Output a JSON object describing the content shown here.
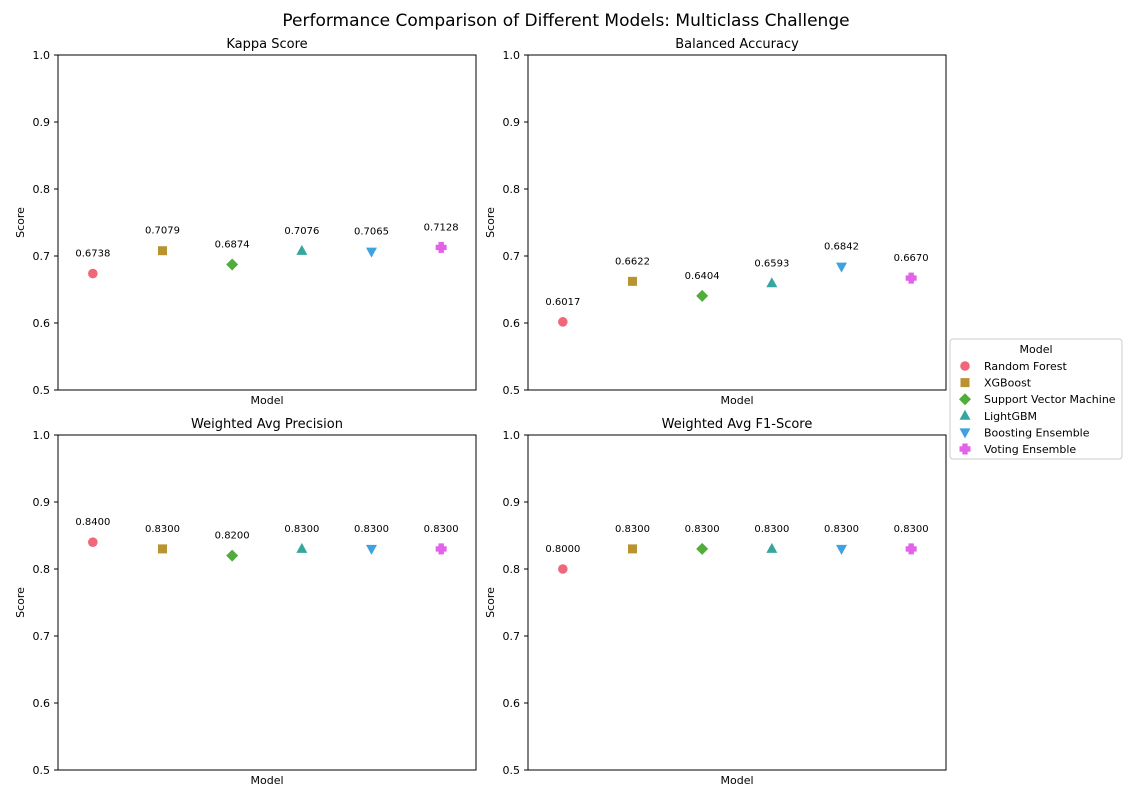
{
  "figure": {
    "title": "Performance Comparison of Different Models: Multiclass Challenge",
    "legend_title": "Model",
    "legend_placement": "right",
    "models": [
      {
        "name": "Random Forest",
        "color": "#f0677a",
        "marker": "circle"
      },
      {
        "name": "XGBoost",
        "color": "#b8932f",
        "marker": "square"
      },
      {
        "name": "Support Vector Machine",
        "color": "#50ad3c",
        "marker": "diamond"
      },
      {
        "name": "LightGBM",
        "color": "#36a7a0",
        "marker": "triangle-up"
      },
      {
        "name": "Boosting Ensemble",
        "color": "#3fa1e0",
        "marker": "triangle-down"
      },
      {
        "name": "Voting Ensemble",
        "color": "#e262ea",
        "marker": "plus"
      }
    ]
  },
  "chart_data": [
    {
      "type": "scatter",
      "title": "Kappa Score",
      "xlabel": "Model",
      "ylabel": "Score",
      "ylim": [
        0.5,
        1.0
      ],
      "yticks": [
        "0.5",
        "0.6",
        "0.7",
        "0.8",
        "0.9",
        "1.0"
      ],
      "grid": false,
      "categories": [
        "Random Forest",
        "XGBoost",
        "Support Vector Machine",
        "LightGBM",
        "Boosting Ensemble",
        "Voting Ensemble"
      ],
      "values": [
        0.6738,
        0.7079,
        0.6874,
        0.7076,
        0.7065,
        0.7128
      ],
      "labels": [
        "0.6738",
        "0.7079",
        "0.6874",
        "0.7076",
        "0.7065",
        "0.7128"
      ]
    },
    {
      "type": "scatter",
      "title": "Balanced Accuracy",
      "xlabel": "Model",
      "ylabel": "Score",
      "ylim": [
        0.5,
        1.0
      ],
      "yticks": [
        "0.5",
        "0.6",
        "0.7",
        "0.8",
        "0.9",
        "1.0"
      ],
      "grid": false,
      "categories": [
        "Random Forest",
        "XGBoost",
        "Support Vector Machine",
        "LightGBM",
        "Boosting Ensemble",
        "Voting Ensemble"
      ],
      "values": [
        0.6017,
        0.6622,
        0.6404,
        0.6593,
        0.6842,
        0.667
      ],
      "labels": [
        "0.6017",
        "0.6622",
        "0.6404",
        "0.6593",
        "0.6842",
        "0.6670"
      ]
    },
    {
      "type": "scatter",
      "title": "Weighted Avg Precision",
      "xlabel": "Model",
      "ylabel": "Score",
      "ylim": [
        0.5,
        1.0
      ],
      "yticks": [
        "0.5",
        "0.6",
        "0.7",
        "0.8",
        "0.9",
        "1.0"
      ],
      "grid": false,
      "categories": [
        "Random Forest",
        "XGBoost",
        "Support Vector Machine",
        "LightGBM",
        "Boosting Ensemble",
        "Voting Ensemble"
      ],
      "values": [
        0.84,
        0.83,
        0.82,
        0.83,
        0.83,
        0.83
      ],
      "labels": [
        "0.8400",
        "0.8300",
        "0.8200",
        "0.8300",
        "0.8300",
        "0.8300"
      ]
    },
    {
      "type": "scatter",
      "title": "Weighted Avg F1-Score",
      "xlabel": "Model",
      "ylabel": "Score",
      "ylim": [
        0.5,
        1.0
      ],
      "yticks": [
        "0.5",
        "0.6",
        "0.7",
        "0.8",
        "0.9",
        "1.0"
      ],
      "grid": false,
      "categories": [
        "Random Forest",
        "XGBoost",
        "Support Vector Machine",
        "LightGBM",
        "Boosting Ensemble",
        "Voting Ensemble"
      ],
      "values": [
        0.8,
        0.83,
        0.83,
        0.83,
        0.83,
        0.83
      ],
      "labels": [
        "0.8000",
        "0.8300",
        "0.8300",
        "0.8300",
        "0.8300",
        "0.8300"
      ]
    }
  ]
}
